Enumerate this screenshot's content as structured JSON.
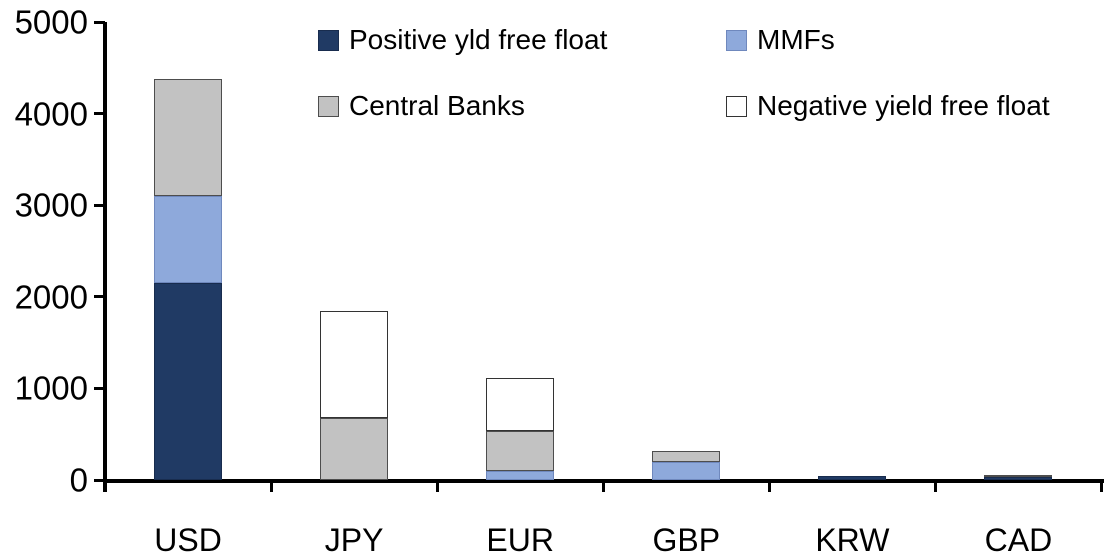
{
  "chart_data": {
    "type": "bar",
    "stacked": true,
    "title": "",
    "xlabel": "",
    "ylabel": "",
    "categories": [
      "USD",
      "JPY",
      "EUR",
      "GBP",
      "KRW",
      "CAD"
    ],
    "series": [
      {
        "name": "Positive yld free float",
        "color": "#203A64",
        "border_color": "#182C4E",
        "values": [
          2150,
          0,
          0,
          0,
          40,
          30
        ]
      },
      {
        "name": "MMFs",
        "color": "#8EA9DB",
        "border_color": "#6F88BD",
        "values": [
          950,
          0,
          100,
          200,
          0,
          0
        ]
      },
      {
        "name": "Central Banks",
        "color": "#C2C2C2",
        "border_color": "#4D4D4D",
        "values": [
          1280,
          680,
          430,
          120,
          0,
          30
        ]
      },
      {
        "name": "Negative yield free float",
        "color": "#FFFFFF",
        "border_color": "#333333",
        "values": [
          0,
          1160,
          580,
          0,
          0,
          0
        ]
      }
    ],
    "ylim": [
      0,
      5000
    ],
    "yticks": [
      0,
      1000,
      2000,
      3000,
      4000,
      5000
    ],
    "grid": false,
    "legend_position": "top-two-column",
    "axis_color": "#000000",
    "text_color": "#000000",
    "background_color": "#FFFFFF"
  }
}
